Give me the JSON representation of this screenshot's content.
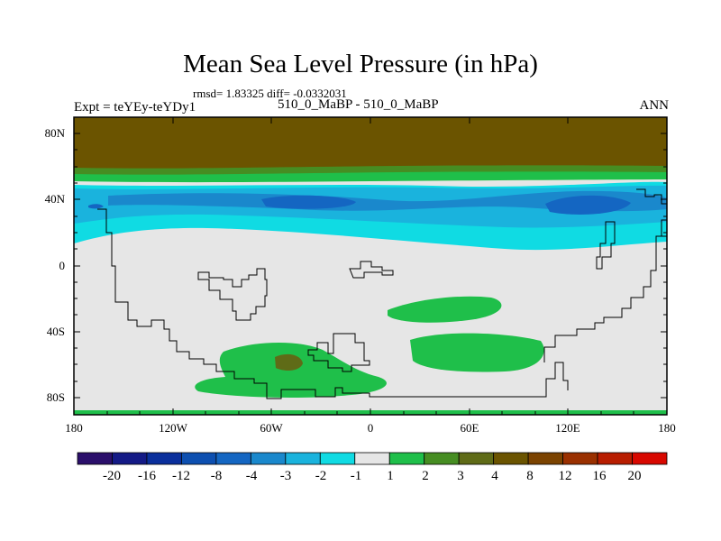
{
  "title": "Mean Sea Level Pressure (in hPa)",
  "stats": "rmsd= 1.83325 diff= -0.0332031",
  "experiment": "Expt = teYEy-teYDy1",
  "center_label": "510_0_MaBP - 510_0_MaBP",
  "season": "ANN",
  "lat_labels": [
    "80N",
    "40N",
    "0",
    "40S",
    "80S"
  ],
  "lon_labels": [
    "180",
    "120W",
    "60W",
    "0",
    "60E",
    "120E",
    "180"
  ],
  "colorbar": {
    "colors": [
      "#2b0f6b",
      "#141a86",
      "#0a2f9c",
      "#0d4fb0",
      "#1466c2",
      "#1a88cc",
      "#1ab3dd",
      "#10dbe3",
      "#e6e6e6",
      "#1fbf4a",
      "#468d22",
      "#5f6b17",
      "#6b5400",
      "#7b4300",
      "#9a3000",
      "#b81d00",
      "#d80800"
    ],
    "labels": [
      "-20",
      "-16",
      "-12",
      "-8",
      "-4",
      "-3",
      "-2",
      "-1",
      "1",
      "2",
      "3",
      "4",
      "8",
      "12",
      "16",
      "20"
    ]
  }
}
